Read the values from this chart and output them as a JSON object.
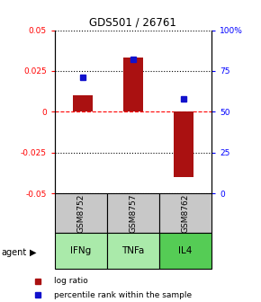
{
  "title": "GDS501 / 26761",
  "samples": [
    "GSM8752",
    "GSM8757",
    "GSM8762"
  ],
  "agents": [
    "IFNg",
    "TNFa",
    "IL4"
  ],
  "log_ratios": [
    0.01,
    0.033,
    -0.04
  ],
  "percentile_ranks": [
    71,
    82,
    58
  ],
  "ylim_left": [
    -0.05,
    0.05
  ],
  "bar_color": "#aa1111",
  "dot_color": "#1111cc",
  "sample_bg": "#c8c8c8",
  "agent_colors": [
    "#aaeaaa",
    "#aaeaaa",
    "#55cc55"
  ],
  "legend_log": "log ratio",
  "legend_pct": "percentile rank within the sample",
  "yticks_left": [
    -0.05,
    -0.025,
    0,
    0.025,
    0.05
  ],
  "ytick_labels_left": [
    "-0.05",
    "-0.025",
    "0",
    "0.025",
    "0.05"
  ],
  "yticks_right": [
    0,
    25,
    50,
    75,
    100
  ],
  "ytick_labels_right": [
    "0",
    "25",
    "50",
    "75",
    "100%"
  ]
}
